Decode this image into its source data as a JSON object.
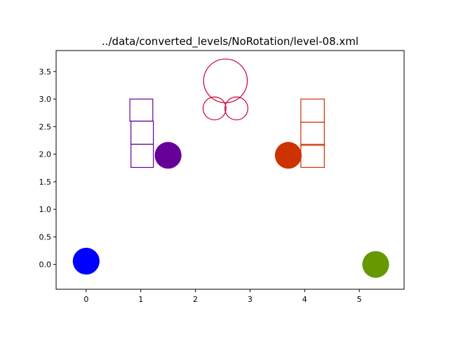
{
  "chart_data": {
    "type": "scatter",
    "title": "../data/converted_levels/NoRotation/level-08.xml",
    "xlabel": "",
    "ylabel": "",
    "xlim": [
      -0.55,
      5.82
    ],
    "ylim": [
      -0.45,
      3.88
    ],
    "xticks": [
      0,
      1,
      2,
      3,
      4,
      5
    ],
    "yticks": [
      0.0,
      0.5,
      1.0,
      1.5,
      2.0,
      2.5,
      3.0,
      3.5
    ],
    "xtick_labels": [
      "0",
      "1",
      "2",
      "3",
      "4",
      "5"
    ],
    "ytick_labels": [
      "0.0",
      "0.5",
      "1.0",
      "1.5",
      "2.0",
      "2.5",
      "3.0",
      "3.5"
    ],
    "grid": false,
    "legend": "none",
    "filled_circles": [
      {
        "x": 0.0,
        "y": 0.06,
        "r": 0.245,
        "color": "#0000ff"
      },
      {
        "x": 1.5,
        "y": 1.98,
        "r": 0.245,
        "color": "#660099"
      },
      {
        "x": 3.7,
        "y": 1.98,
        "r": 0.245,
        "color": "#cc3300"
      },
      {
        "x": 5.3,
        "y": 0.0,
        "r": 0.245,
        "color": "#669900"
      }
    ],
    "outline_circles": [
      {
        "x": 2.55,
        "y": 3.33,
        "r": 0.4,
        "color": "#cc0033"
      },
      {
        "x": 2.35,
        "y": 2.83,
        "r": 0.21,
        "color": "#cc0033"
      },
      {
        "x": 2.75,
        "y": 2.83,
        "r": 0.21,
        "color": "#cc0033"
      }
    ],
    "outline_boxes": [
      {
        "x0": 0.8,
        "x1": 1.22,
        "y0": 2.6,
        "y1": 3.0,
        "color": "#660099"
      },
      {
        "x0": 0.82,
        "x1": 1.23,
        "y0": 2.18,
        "y1": 2.6,
        "color": "#660099"
      },
      {
        "x0": 0.82,
        "x1": 1.23,
        "y0": 1.76,
        "y1": 2.18,
        "color": "#660099"
      },
      {
        "x0": 3.93,
        "x1": 4.36,
        "y0": 2.58,
        "y1": 3.0,
        "color": "#cc3300"
      },
      {
        "x0": 3.93,
        "x1": 4.36,
        "y0": 2.16,
        "y1": 2.58,
        "color": "#cc3300"
      },
      {
        "x0": 3.93,
        "x1": 4.36,
        "y0": 1.76,
        "y1": 2.18,
        "color": "#cc3300"
      }
    ]
  }
}
